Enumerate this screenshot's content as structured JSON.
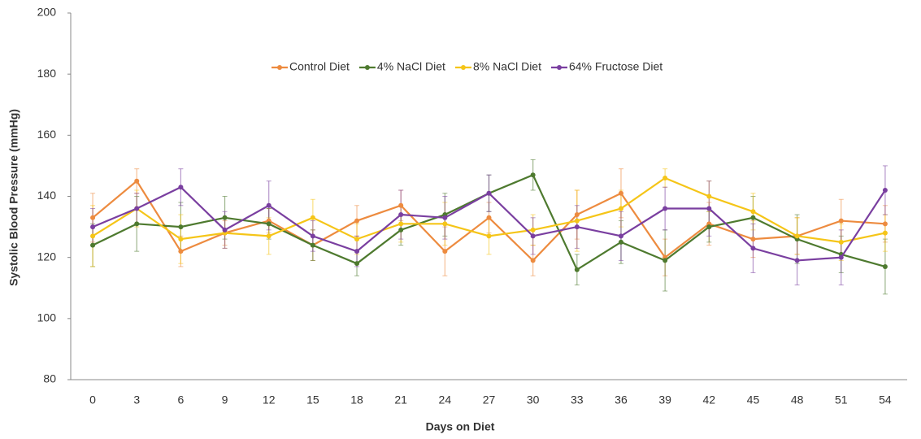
{
  "chart_data": {
    "type": "line",
    "x_label": "Days on Diet",
    "y_label": "Systolic Blood Pressure (mmHg)",
    "categories": [
      "0",
      "3",
      "6",
      "9",
      "12",
      "15",
      "18",
      "21",
      "24",
      "27",
      "30",
      "33",
      "36",
      "39",
      "42",
      "45",
      "48",
      "51",
      "54"
    ],
    "ylim": [
      80,
      200
    ],
    "yticks": [
      80,
      100,
      120,
      140,
      160,
      180,
      200
    ],
    "grid": false,
    "legend": "top",
    "series": [
      {
        "name": "Control Diet",
        "color": "#ed8b3f",
        "values": [
          133,
          145,
          122,
          128,
          132,
          124,
          132,
          137,
          122,
          133,
          119,
          134,
          141,
          120,
          131,
          126,
          127,
          132,
          131
        ],
        "errors": [
          8,
          4,
          5,
          4,
          4,
          5,
          5,
          5,
          8,
          5,
          5,
          8,
          8,
          6,
          7,
          6,
          6,
          7,
          6
        ]
      },
      {
        "name": "4% NaCl Diet",
        "color": "#4e7a2f",
        "values": [
          124,
          131,
          130,
          133,
          131,
          124,
          118,
          129,
          134,
          141,
          147,
          116,
          125,
          119,
          130,
          133,
          126,
          121,
          117
        ],
        "errors": [
          7,
          9,
          8,
          7,
          5,
          5,
          4,
          5,
          7,
          6,
          5,
          5,
          7,
          10,
          5,
          7,
          8,
          6,
          9
        ]
      },
      {
        "name": "8% NaCl Diet",
        "color": "#f5c518",
        "values": [
          127,
          136,
          126,
          128,
          127,
          133,
          126,
          131,
          131,
          127,
          129,
          132,
          136,
          146,
          140,
          135,
          127,
          125,
          128
        ],
        "errors": [
          10,
          6,
          8,
          5,
          6,
          6,
          5,
          6,
          7,
          6,
          5,
          10,
          6,
          3,
          5,
          6,
          6,
          6,
          6
        ]
      },
      {
        "name": "64% Fructose Diet",
        "color": "#7a3fa0",
        "values": [
          130,
          136,
          143,
          129,
          137,
          127,
          122,
          134,
          133,
          141,
          127,
          130,
          127,
          136,
          136,
          123,
          119,
          120,
          142
        ],
        "errors": [
          6,
          5,
          6,
          6,
          8,
          5,
          5,
          8,
          7,
          6,
          6,
          7,
          8,
          7,
          9,
          8,
          8,
          9,
          8
        ]
      }
    ]
  }
}
